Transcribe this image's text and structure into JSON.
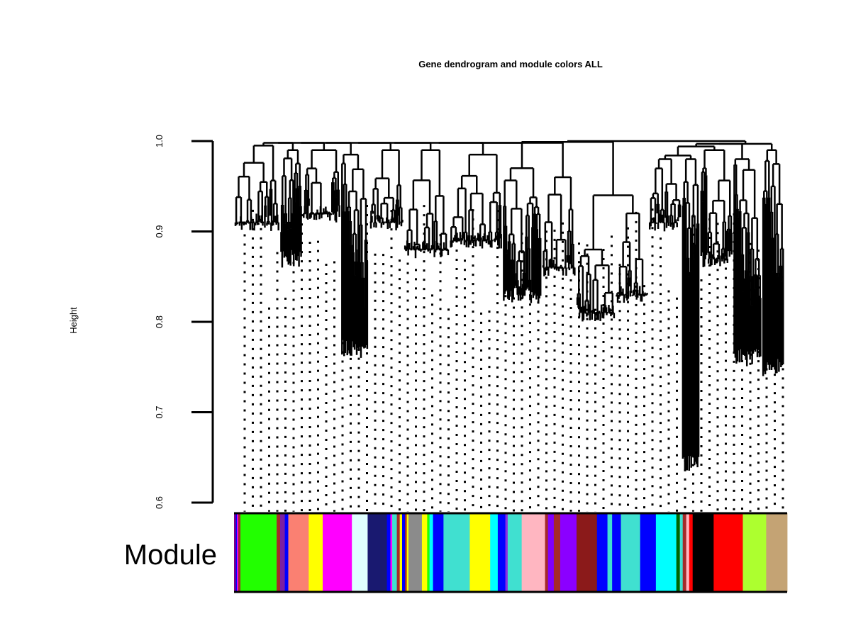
{
  "chart_data": {
    "type": "dendrogram",
    "title": "Gene dendrogram and module colors ALL",
    "ylabel": "Height",
    "ylim": [
      0.6,
      1.0
    ],
    "y_ticks": [
      "0.6",
      "0.7",
      "0.8",
      "0.9",
      "1.0"
    ],
    "color_row_label": "Module",
    "leaf_cut_height": 0.59,
    "line_color": "#000000",
    "merge_heights_sample": [
      1.0,
      0.995,
      0.99,
      0.985,
      0.97,
      0.96,
      0.95,
      0.93,
      0.92,
      0.9,
      0.88,
      0.86,
      0.84,
      0.82,
      0.8,
      0.76,
      0.74,
      0.635
    ],
    "module_colors": [
      {
        "color": "#800080",
        "share": 0.3
      },
      {
        "color": "#0000FF",
        "share": 0.2
      },
      {
        "color": "#FF00FF",
        "share": 0.2
      },
      {
        "color": "#A52A2A",
        "share": 0.4
      },
      {
        "color": "#22FF00",
        "share": 6.2
      },
      {
        "color": "#A52A2A",
        "share": 0.6
      },
      {
        "color": "#7B1FA2",
        "share": 0.8
      },
      {
        "color": "#0000FF",
        "share": 0.6
      },
      {
        "color": "#FA8072",
        "share": 3.5
      },
      {
        "color": "#FFFF00",
        "share": 2.4
      },
      {
        "color": "#FF00FF",
        "share": 5.0
      },
      {
        "color": "#E0FFFF",
        "share": 2.7
      },
      {
        "color": "#191970",
        "share": 3.3
      },
      {
        "color": "#0000FF",
        "share": 0.6
      },
      {
        "color": "#FF00FF",
        "share": 0.3
      },
      {
        "color": "#40E0D0",
        "share": 0.8
      },
      {
        "color": "#A52A2A",
        "share": 0.5
      },
      {
        "color": "#FFFF00",
        "share": 0.4
      },
      {
        "color": "#0000FF",
        "share": 0.5
      },
      {
        "color": "#A52A2A",
        "share": 0.3
      },
      {
        "color": "#FFFF00",
        "share": 0.3
      },
      {
        "color": "#8B8B8B",
        "share": 2.3
      },
      {
        "color": "#FFFF00",
        "share": 0.9
      },
      {
        "color": "#22FF00",
        "share": 0.4
      },
      {
        "color": "#00FFFF",
        "share": 0.6
      },
      {
        "color": "#0000FF",
        "share": 1.8
      },
      {
        "color": "#40E0D0",
        "share": 4.5
      },
      {
        "color": "#FFFF00",
        "share": 3.5
      },
      {
        "color": "#00FFFF",
        "share": 1.3
      },
      {
        "color": "#0000FF",
        "share": 1.3
      },
      {
        "color": "#8A2BE2",
        "share": 0.4
      },
      {
        "color": "#40E0D0",
        "share": 2.4
      },
      {
        "color": "#FFB6C1",
        "share": 4.0
      },
      {
        "color": "#A52A2A",
        "share": 0.5
      },
      {
        "color": "#8000FF",
        "share": 1.0
      },
      {
        "color": "#A52A2A",
        "share": 1.1
      },
      {
        "color": "#8B00FF",
        "share": 2.8
      },
      {
        "color": "#8B1A1A",
        "share": 3.5
      },
      {
        "color": "#0000FF",
        "share": 1.8
      },
      {
        "color": "#40E0D0",
        "share": 0.8
      },
      {
        "color": "#0000FF",
        "share": 1.5
      },
      {
        "color": "#40E0D0",
        "share": 3.3
      },
      {
        "color": "#0000FF",
        "share": 2.7
      },
      {
        "color": "#00FFFF",
        "share": 3.5
      },
      {
        "color": "#006400",
        "share": 0.6
      },
      {
        "color": "#40E0D0",
        "share": 0.5
      },
      {
        "color": "#A52A2A",
        "share": 0.6
      },
      {
        "color": "#FFB6C1",
        "share": 0.5
      },
      {
        "color": "#FF0000",
        "share": 0.6
      },
      {
        "color": "#000000",
        "share": 3.6
      },
      {
        "color": "#FF0000",
        "share": 5.0
      },
      {
        "color": "#ADFF2F",
        "share": 4.0
      },
      {
        "color": "#C4A374",
        "share": 3.6
      }
    ]
  }
}
